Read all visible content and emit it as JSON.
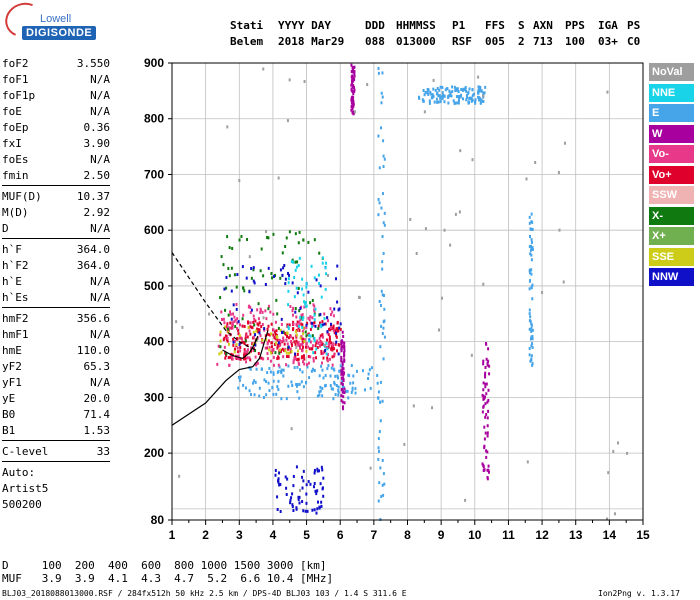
{
  "logo": {
    "line1": "Lowell",
    "line2": "DIGISONDE"
  },
  "header": {
    "labels": {
      "stati": "Stati",
      "date": "YYYY DAY",
      "ddd": "DDD",
      "time": "HHMMSS",
      "p1": "P1",
      "ffs": "FFS",
      "s": "S",
      "axn": "AXN",
      "pps": "PPS",
      "iga": "IGA",
      "ps": "PS"
    },
    "values": {
      "stati": "Belem",
      "date": "2018 Mar29",
      "ddd": "088",
      "time": "013000",
      "p1": "RSF",
      "ffs": "005",
      "s": "2",
      "axn": "713",
      "pps": "100",
      "iga": "03+",
      "ps": "C0"
    }
  },
  "params": {
    "group1": [
      [
        "foF2",
        "3.550"
      ],
      [
        "foF1",
        "N/A"
      ],
      [
        "foF1p",
        "N/A"
      ],
      [
        "foE",
        "N/A"
      ],
      [
        "foEp",
        "0.36"
      ],
      [
        "fxI",
        "3.90"
      ],
      [
        "foEs",
        "N/A"
      ],
      [
        "fmin",
        "2.50"
      ]
    ],
    "group2": [
      [
        "MUF(D)",
        "10.37"
      ],
      [
        "M(D)",
        "2.92"
      ],
      [
        "D",
        "N/A"
      ]
    ],
    "group3": [
      [
        "h`F",
        "364.0"
      ],
      [
        "h`F2",
        "364.0"
      ],
      [
        "h`E",
        "N/A"
      ],
      [
        "h`Es",
        "N/A"
      ]
    ],
    "group4": [
      [
        "hmF2",
        "356.6"
      ],
      [
        "hmF1",
        "N/A"
      ],
      [
        "hmE",
        "110.0"
      ],
      [
        "yF2",
        "65.3"
      ],
      [
        "yF1",
        "N/A"
      ],
      [
        "yE",
        "20.0"
      ],
      [
        "B0",
        "71.4"
      ],
      [
        "B1",
        "1.53"
      ]
    ],
    "group5": [
      [
        "C-level",
        "33"
      ]
    ],
    "autoscale": [
      "Auto:",
      "Artist5",
      "500200"
    ]
  },
  "legend": [
    {
      "label": "NoVal",
      "color": "#9e9e9e"
    },
    {
      "label": "NNE",
      "color": "#19d3e8"
    },
    {
      "label": "E",
      "color": "#46a4e8"
    },
    {
      "label": "W",
      "color": "#a8009e"
    },
    {
      "label": "Vo-",
      "color": "#e8388a"
    },
    {
      "label": "Vo+",
      "color": "#e0002c"
    },
    {
      "label": "SSW",
      "color": "#f0b3b3"
    },
    {
      "label": "X-",
      "color": "#107a10"
    },
    {
      "label": "X+",
      "color": "#70b050"
    },
    {
      "label": "SSE",
      "color": "#cccc19"
    },
    {
      "label": "NNW",
      "color": "#1010c8"
    }
  ],
  "footer": {
    "d_row": "D     100  200  400  600  800 1000 1500 3000 [km]",
    "muf_row": "MUF   3.9  3.9  4.1  4.3  4.7  5.2  6.6 10.4 [MHz]",
    "info_left": "BLJ03_2018088013000.RSF / 284fx512h 50 kHz 2.5 km / DPS-4D BLJ03 103 / 1.4 S 311.6 E",
    "info_right": "Ion2Png v. 1.3.17"
  },
  "chart_data": {
    "type": "scatter",
    "xlim": [
      1,
      15
    ],
    "ylim": [
      80,
      900
    ],
    "x_ticks": [
      1,
      2,
      3,
      4,
      5,
      6,
      7,
      8,
      9,
      10,
      11,
      12,
      13,
      14,
      15
    ],
    "y_ticks": [
      80,
      200,
      300,
      400,
      500,
      600,
      700,
      800,
      900
    ],
    "grid": true,
    "series": [
      {
        "name": "E",
        "clusters": [
          [
            2.9,
            7.2,
            300,
            360
          ],
          [
            7.1,
            7.3,
            80,
            900
          ],
          [
            8.3,
            10.3,
            830,
            860
          ],
          [
            11.6,
            11.7,
            360,
            650
          ]
        ]
      },
      {
        "name": "Vo+",
        "clusters": [
          [
            2.5,
            6.0,
            370,
            440
          ]
        ]
      },
      {
        "name": "Vo-",
        "clusters": [
          [
            2.3,
            5.8,
            360,
            470
          ]
        ]
      },
      {
        "name": "W",
        "clusters": [
          [
            6.3,
            6.4,
            810,
            900
          ],
          [
            6.0,
            6.1,
            280,
            420
          ],
          [
            10.2,
            10.4,
            150,
            400
          ]
        ]
      },
      {
        "name": "X-",
        "clusters": [
          [
            2.4,
            5.5,
            380,
            600
          ]
        ]
      },
      {
        "name": "SSE",
        "clusters": [
          [
            2.2,
            5.0,
            380,
            430
          ]
        ]
      },
      {
        "name": "NNW",
        "clusters": [
          [
            2.5,
            6.0,
            380,
            540
          ],
          [
            4.0,
            5.5,
            90,
            180
          ]
        ]
      },
      {
        "name": "NNE",
        "clusters": [
          [
            4.4,
            5.6,
            380,
            560
          ]
        ]
      },
      {
        "name": "NoVal",
        "clusters": [
          [
            1.0,
            14.5,
            80,
            900
          ]
        ]
      }
    ],
    "curves": {
      "trace_dashed": [
        [
          1.0,
          560
        ],
        [
          2.0,
          470
        ],
        [
          2.6,
          420
        ],
        [
          3.0,
          400
        ],
        [
          3.3,
          390
        ],
        [
          3.5,
          385
        ]
      ],
      "trace_solid": [
        [
          1.0,
          250
        ],
        [
          2.0,
          290
        ],
        [
          2.6,
          330
        ],
        [
          3.0,
          350
        ],
        [
          3.4,
          355
        ],
        [
          3.6,
          370
        ],
        [
          3.85,
          420
        ]
      ],
      "profile": [
        [
          2.5,
          385
        ],
        [
          2.8,
          375
        ],
        [
          3.1,
          370
        ],
        [
          3.3,
          380
        ],
        [
          3.45,
          395
        ],
        [
          3.55,
          410
        ]
      ]
    }
  }
}
